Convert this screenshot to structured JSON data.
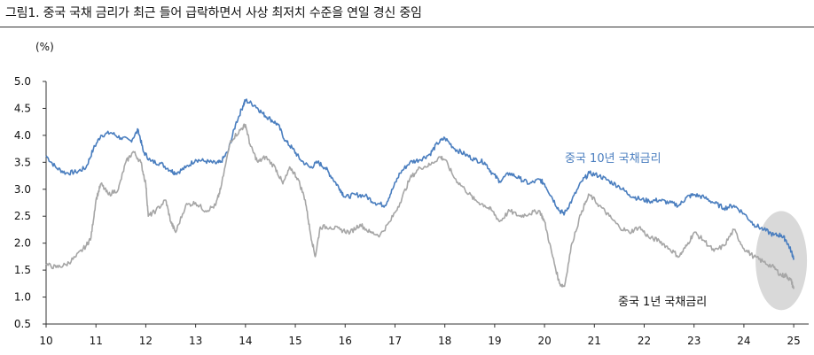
{
  "header": {
    "title": "그림1.  중국 국채 금리가 최근 들어 급락하면서 사상 최저치 수준을 연일 경신 중임"
  },
  "chart_data": {
    "type": "line",
    "title": "",
    "ylabel": "(%)",
    "xlabel": "",
    "ylim": [
      0.5,
      5.0
    ],
    "xlim": [
      2010,
      2025.3
    ],
    "y_ticks": [
      "5.0",
      "4.5",
      "4.0",
      "3.5",
      "3.0",
      "2.5",
      "2.0",
      "1.5",
      "1.0",
      "0.5"
    ],
    "x_ticks": [
      "10",
      "11",
      "12",
      "13",
      "14",
      "15",
      "16",
      "17",
      "18",
      "19",
      "20",
      "21",
      "22",
      "23",
      "24",
      "25"
    ],
    "grid": false,
    "legend": "none",
    "series": [
      {
        "name": "중국 10년 국채금리",
        "color": "#4a7ebf",
        "points": [
          [
            2010.0,
            3.62
          ],
          [
            2010.2,
            3.4
          ],
          [
            2010.4,
            3.3
          ],
          [
            2010.6,
            3.32
          ],
          [
            2010.8,
            3.4
          ],
          [
            2010.95,
            3.75
          ],
          [
            2011.1,
            4.0
          ],
          [
            2011.3,
            4.05
          ],
          [
            2011.5,
            3.95
          ],
          [
            2011.7,
            3.9
          ],
          [
            2011.85,
            4.1
          ],
          [
            2011.95,
            3.7
          ],
          [
            2012.1,
            3.52
          ],
          [
            2012.3,
            3.48
          ],
          [
            2012.5,
            3.35
          ],
          [
            2012.6,
            3.3
          ],
          [
            2012.8,
            3.4
          ],
          [
            2013.0,
            3.55
          ],
          [
            2013.2,
            3.52
          ],
          [
            2013.4,
            3.48
          ],
          [
            2013.5,
            3.5
          ],
          [
            2013.65,
            3.7
          ],
          [
            2013.8,
            4.2
          ],
          [
            2013.95,
            4.55
          ],
          [
            2014.0,
            4.65
          ],
          [
            2014.2,
            4.55
          ],
          [
            2014.35,
            4.4
          ],
          [
            2014.5,
            4.3
          ],
          [
            2014.65,
            4.2
          ],
          [
            2014.8,
            3.9
          ],
          [
            2014.95,
            3.75
          ],
          [
            2015.1,
            3.55
          ],
          [
            2015.3,
            3.4
          ],
          [
            2015.45,
            3.5
          ],
          [
            2015.6,
            3.4
          ],
          [
            2015.75,
            3.2
          ],
          [
            2015.9,
            3.0
          ],
          [
            2016.0,
            2.85
          ],
          [
            2016.2,
            2.9
          ],
          [
            2016.4,
            2.88
          ],
          [
            2016.6,
            2.75
          ],
          [
            2016.8,
            2.7
          ],
          [
            2016.95,
            3.0
          ],
          [
            2017.1,
            3.3
          ],
          [
            2017.3,
            3.5
          ],
          [
            2017.5,
            3.55
          ],
          [
            2017.7,
            3.65
          ],
          [
            2017.85,
            3.85
          ],
          [
            2018.0,
            3.95
          ],
          [
            2018.2,
            3.75
          ],
          [
            2018.4,
            3.65
          ],
          [
            2018.6,
            3.55
          ],
          [
            2018.8,
            3.5
          ],
          [
            2018.95,
            3.3
          ],
          [
            2019.1,
            3.15
          ],
          [
            2019.3,
            3.3
          ],
          [
            2019.5,
            3.2
          ],
          [
            2019.7,
            3.1
          ],
          [
            2019.9,
            3.18
          ],
          [
            2020.0,
            3.1
          ],
          [
            2020.15,
            2.85
          ],
          [
            2020.3,
            2.6
          ],
          [
            2020.4,
            2.55
          ],
          [
            2020.55,
            2.8
          ],
          [
            2020.75,
            3.15
          ],
          [
            2020.9,
            3.3
          ],
          [
            2021.1,
            3.25
          ],
          [
            2021.3,
            3.15
          ],
          [
            2021.5,
            3.05
          ],
          [
            2021.7,
            2.9
          ],
          [
            2021.9,
            2.82
          ],
          [
            2022.1,
            2.78
          ],
          [
            2022.3,
            2.8
          ],
          [
            2022.5,
            2.75
          ],
          [
            2022.7,
            2.7
          ],
          [
            2022.85,
            2.85
          ],
          [
            2023.0,
            2.9
          ],
          [
            2023.2,
            2.85
          ],
          [
            2023.4,
            2.75
          ],
          [
            2023.6,
            2.65
          ],
          [
            2023.8,
            2.7
          ],
          [
            2024.0,
            2.55
          ],
          [
            2024.2,
            2.35
          ],
          [
            2024.4,
            2.25
          ],
          [
            2024.6,
            2.15
          ],
          [
            2024.75,
            2.15
          ],
          [
            2024.85,
            2.05
          ],
          [
            2024.95,
            1.85
          ],
          [
            2025.0,
            1.72
          ]
        ]
      },
      {
        "name": "중국 1년 국채금리",
        "color": "#a6a6a6",
        "points": [
          [
            2010.0,
            1.6
          ],
          [
            2010.2,
            1.55
          ],
          [
            2010.4,
            1.6
          ],
          [
            2010.6,
            1.75
          ],
          [
            2010.8,
            1.95
          ],
          [
            2010.9,
            2.1
          ],
          [
            2011.0,
            2.8
          ],
          [
            2011.1,
            3.1
          ],
          [
            2011.25,
            2.9
          ],
          [
            2011.45,
            3.0
          ],
          [
            2011.6,
            3.5
          ],
          [
            2011.75,
            3.7
          ],
          [
            2011.9,
            3.5
          ],
          [
            2012.0,
            3.1
          ],
          [
            2012.05,
            2.5
          ],
          [
            2012.2,
            2.6
          ],
          [
            2012.4,
            2.8
          ],
          [
            2012.5,
            2.4
          ],
          [
            2012.6,
            2.2
          ],
          [
            2012.8,
            2.7
          ],
          [
            2013.0,
            2.75
          ],
          [
            2013.2,
            2.6
          ],
          [
            2013.4,
            2.7
          ],
          [
            2013.5,
            3.0
          ],
          [
            2013.7,
            3.9
          ],
          [
            2013.9,
            4.1
          ],
          [
            2014.0,
            4.2
          ],
          [
            2014.1,
            3.8
          ],
          [
            2014.25,
            3.5
          ],
          [
            2014.4,
            3.6
          ],
          [
            2014.6,
            3.4
          ],
          [
            2014.75,
            3.1
          ],
          [
            2014.9,
            3.4
          ],
          [
            2015.05,
            3.2
          ],
          [
            2015.2,
            2.8
          ],
          [
            2015.3,
            2.2
          ],
          [
            2015.4,
            1.75
          ],
          [
            2015.5,
            2.3
          ],
          [
            2015.7,
            2.3
          ],
          [
            2015.9,
            2.25
          ],
          [
            2016.1,
            2.2
          ],
          [
            2016.3,
            2.35
          ],
          [
            2016.5,
            2.2
          ],
          [
            2016.7,
            2.15
          ],
          [
            2016.9,
            2.4
          ],
          [
            2017.1,
            2.75
          ],
          [
            2017.3,
            3.2
          ],
          [
            2017.5,
            3.4
          ],
          [
            2017.7,
            3.45
          ],
          [
            2017.9,
            3.6
          ],
          [
            2018.0,
            3.55
          ],
          [
            2018.2,
            3.2
          ],
          [
            2018.4,
            3.0
          ],
          [
            2018.6,
            2.8
          ],
          [
            2018.8,
            2.7
          ],
          [
            2018.95,
            2.6
          ],
          [
            2019.1,
            2.4
          ],
          [
            2019.3,
            2.6
          ],
          [
            2019.5,
            2.5
          ],
          [
            2019.7,
            2.55
          ],
          [
            2019.9,
            2.6
          ],
          [
            2020.0,
            2.4
          ],
          [
            2020.15,
            1.8
          ],
          [
            2020.3,
            1.25
          ],
          [
            2020.4,
            1.2
          ],
          [
            2020.55,
            2.0
          ],
          [
            2020.75,
            2.6
          ],
          [
            2020.9,
            2.9
          ],
          [
            2021.1,
            2.7
          ],
          [
            2021.3,
            2.5
          ],
          [
            2021.5,
            2.3
          ],
          [
            2021.7,
            2.2
          ],
          [
            2021.9,
            2.3
          ],
          [
            2022.1,
            2.1
          ],
          [
            2022.3,
            2.05
          ],
          [
            2022.5,
            1.9
          ],
          [
            2022.7,
            1.75
          ],
          [
            2022.85,
            1.95
          ],
          [
            2023.0,
            2.2
          ],
          [
            2023.2,
            2.05
          ],
          [
            2023.4,
            1.85
          ],
          [
            2023.6,
            1.95
          ],
          [
            2023.8,
            2.25
          ],
          [
            2024.0,
            1.9
          ],
          [
            2024.2,
            1.75
          ],
          [
            2024.4,
            1.65
          ],
          [
            2024.6,
            1.55
          ],
          [
            2024.75,
            1.4
          ],
          [
            2024.85,
            1.4
          ],
          [
            2024.95,
            1.3
          ],
          [
            2025.0,
            1.15
          ]
        ]
      }
    ],
    "annotation": {
      "type": "ellipse-highlight",
      "color": "#d9d9d9"
    }
  }
}
